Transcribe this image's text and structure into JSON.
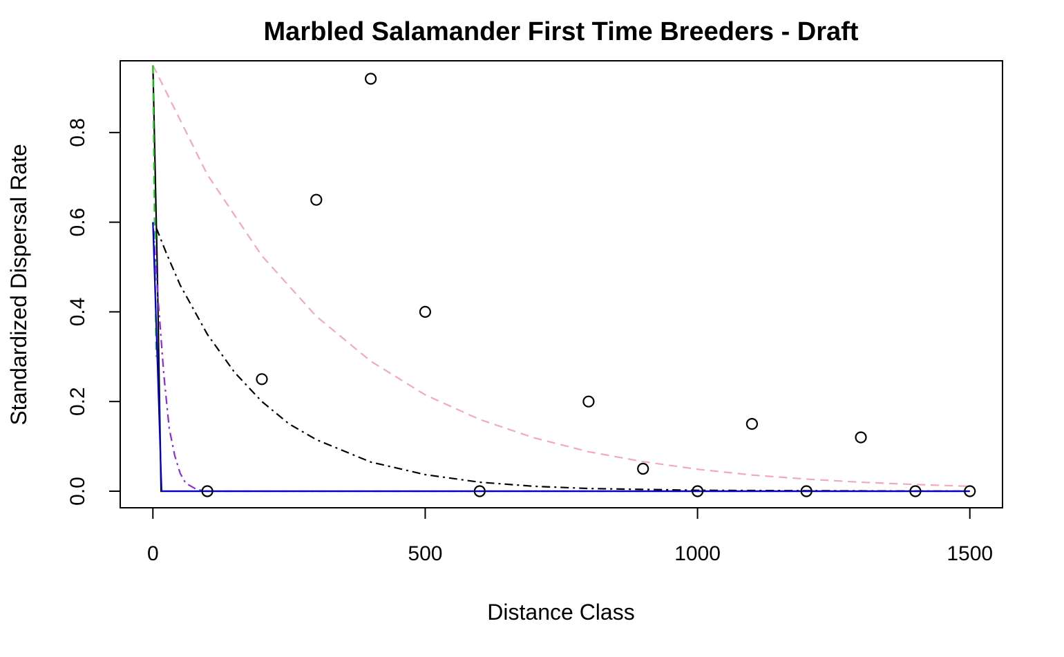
{
  "chart_data": {
    "type": "scatter",
    "title": "Marbled Salamander First Time Breeders - Draft",
    "xlabel": "Distance Class",
    "ylabel": "Standardized Dispersal Rate",
    "xlim": [
      -60,
      1560
    ],
    "ylim": [
      -0.037,
      0.96
    ],
    "xticks": [
      0,
      500,
      1000,
      1500
    ],
    "yticks": [
      0.0,
      0.2,
      0.4,
      0.6,
      0.8
    ],
    "xtick_labels": [
      "0",
      "500",
      "1000",
      "1500"
    ],
    "ytick_labels": [
      "0.0",
      "0.2",
      "0.4",
      "0.6",
      "0.8"
    ],
    "grid": false,
    "legend": "none",
    "points": {
      "marker": "open-circle",
      "color": "#000000",
      "x": [
        100,
        200,
        300,
        400,
        500,
        600,
        800,
        900,
        1000,
        1100,
        1200,
        1300,
        1400,
        1500
      ],
      "y": [
        0.0,
        0.25,
        0.65,
        0.92,
        0.4,
        0.0,
        0.2,
        0.05,
        0.0,
        0.15,
        0.0,
        0.12,
        0.0,
        0.0
      ]
    },
    "series": [
      {
        "color": "#f4a7bd",
        "dash": "dashed",
        "x": [
          0,
          100,
          200,
          300,
          400,
          500,
          600,
          700,
          800,
          900,
          1000,
          1100,
          1200,
          1300,
          1400,
          1500
        ],
        "y": [
          0.95,
          0.706,
          0.525,
          0.39,
          0.29,
          0.215,
          0.16,
          0.119,
          0.088,
          0.066,
          0.049,
          0.036,
          0.027,
          0.02,
          0.015,
          0.011
        ]
      },
      {
        "color": "#000000",
        "dash": "dotdash",
        "x": [
          2,
          25,
          50,
          100,
          150,
          200,
          250,
          300,
          400,
          500,
          600,
          700,
          800,
          900,
          1000,
          1200,
          1500
        ],
        "y": [
          0.6,
          0.53,
          0.46,
          0.35,
          0.265,
          0.2,
          0.15,
          0.115,
          0.065,
          0.037,
          0.02,
          0.011,
          0.006,
          0.004,
          0.002,
          0.001,
          0.0
        ]
      },
      {
        "color": "#000000",
        "dash": "solid",
        "x": [
          0,
          8,
          15,
          1500
        ],
        "y": [
          0.95,
          0.5,
          0.0,
          0.0
        ]
      },
      {
        "color": "#22cc22",
        "dash": "dashed",
        "x": [
          0,
          3,
          6
        ],
        "y": [
          0.95,
          0.6,
          0.3
        ]
      },
      {
        "color": "#8a2be2",
        "dash": "dotdash",
        "x": [
          0,
          10,
          20,
          30,
          40,
          50,
          60,
          80,
          100,
          1500
        ],
        "y": [
          0.6,
          0.42,
          0.26,
          0.14,
          0.08,
          0.04,
          0.018,
          0.004,
          0.0,
          0.0
        ]
      },
      {
        "color": "#0000cc",
        "dash": "solid",
        "x": [
          0,
          16,
          1500
        ],
        "y": [
          0.6,
          0.0,
          0.0
        ]
      }
    ]
  }
}
